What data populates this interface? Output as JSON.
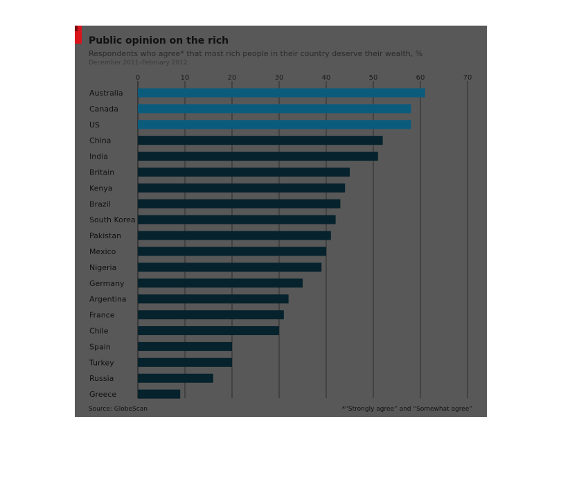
{
  "chart_data": {
    "type": "bar",
    "orientation": "horizontal",
    "title": "Public opinion on the rich",
    "subtitle": "Respondents who agree* that most rich people in their country deserve their wealth, %",
    "date_range": "December 2011–February 2012",
    "source": "Source: GlobeScan",
    "footnote": "*“Strongly agree” and “Somewhat agree”",
    "categories": [
      "Australia",
      "Canada",
      "US",
      "China",
      "India",
      "Britain",
      "Kenya",
      "Brazil",
      "South Korea",
      "Pakistan",
      "Mexico",
      "Nigeria",
      "Germany",
      "Argentina",
      "France",
      "Chile",
      "Spain",
      "Turkey",
      "Russia",
      "Greece"
    ],
    "values": [
      61,
      58,
      58,
      52,
      51,
      45,
      44,
      43,
      42,
      41,
      40,
      39,
      35,
      32,
      31,
      30,
      20,
      20,
      16,
      9
    ],
    "xlim": [
      0,
      70
    ],
    "xticks": [
      0,
      10,
      20,
      30,
      40,
      50,
      60,
      70
    ],
    "grid": true,
    "colors": {
      "bar": "#06222c",
      "bar_highlight": "#0b5c7c",
      "background": "#585858",
      "grid": "#222222",
      "title_accent": "#d9141b"
    }
  }
}
